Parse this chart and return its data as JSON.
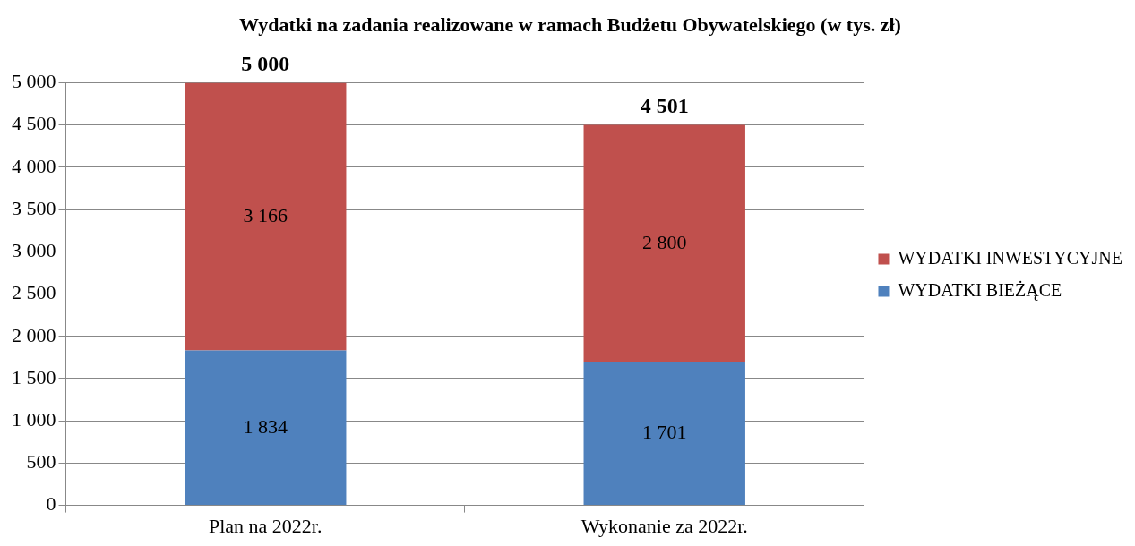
{
  "chart_data": {
    "type": "bar",
    "stacked": true,
    "title": "Wydatki na zadania realizowane w ramach Budżetu Obywatelskiego (w tys. zł)",
    "categories": [
      "Plan na 2022r.",
      "Wykonanie za 2022r."
    ],
    "series": [
      {
        "name": "WYDATKI BIEŻĄCE",
        "color": "#4f81bd",
        "values": [
          1834,
          1701
        ],
        "value_labels": [
          "1 834",
          "1 701"
        ]
      },
      {
        "name": "WYDATKI INWESTYCYJNE",
        "color": "#c0504d",
        "values": [
          3166,
          2800
        ],
        "value_labels": [
          "3 166",
          "2 800"
        ]
      }
    ],
    "totals": [
      "5 000",
      "4 501"
    ],
    "ylim": [
      0,
      5000
    ],
    "yticks": [
      0,
      500,
      {
        "value": 1000,
        "label": "1 000"
      },
      {
        "value": 1500,
        "label": "1 500"
      },
      {
        "value": 2000,
        "label": "2 000"
      },
      {
        "value": 2500,
        "label": "2 500"
      },
      {
        "value": 3000,
        "label": "3 000"
      },
      {
        "value": 3500,
        "label": "3 500"
      },
      {
        "value": 4000,
        "label": "4 000"
      },
      {
        "value": 4500,
        "label": "4 500"
      },
      {
        "value": 5000,
        "label": "5 000"
      }
    ],
    "grid": true,
    "legend": "right"
  }
}
